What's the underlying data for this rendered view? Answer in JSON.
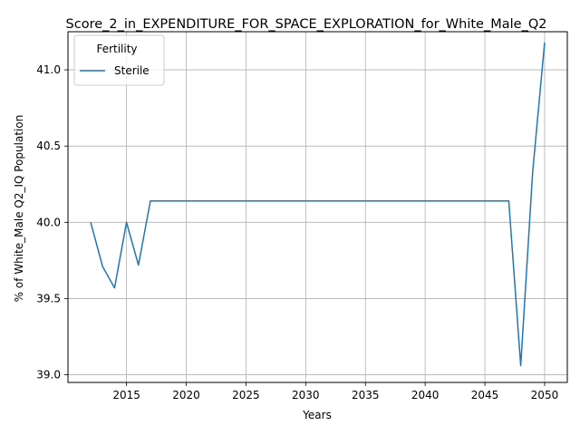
{
  "chart_data": {
    "type": "line",
    "title": "Score_2_in_EXPENDITURE_FOR_SPACE_EXPLORATION_for_White_Male_Q2",
    "xlabel": "Years",
    "ylabel": "% of White_Male Q2_IQ Population",
    "xlim": [
      2010.1,
      2051.9
    ],
    "ylim": [
      38.95,
      41.25
    ],
    "xticks": [
      2015,
      2020,
      2025,
      2030,
      2035,
      2040,
      2045,
      2050
    ],
    "yticks": [
      39.0,
      39.5,
      40.0,
      40.5,
      41.0
    ],
    "ytick_labels": [
      "39.0",
      "39.5",
      "40.0",
      "40.5",
      "41.0"
    ],
    "grid": true,
    "legend": {
      "title": "Fertility",
      "placement": "top-left"
    },
    "series": [
      {
        "name": "Sterile",
        "color": "#1f77b4",
        "x": [
          2012,
          2013,
          2014,
          2015,
          2016,
          2017,
          2018,
          2019,
          2020,
          2021,
          2022,
          2023,
          2024,
          2025,
          2026,
          2027,
          2028,
          2029,
          2030,
          2031,
          2032,
          2033,
          2034,
          2035,
          2036,
          2037,
          2038,
          2039,
          2040,
          2041,
          2042,
          2043,
          2044,
          2045,
          2046,
          2047,
          2048,
          2049,
          2050
        ],
        "y": [
          40.0,
          39.71,
          39.57,
          40.0,
          39.72,
          40.14,
          40.14,
          40.14,
          40.14,
          40.14,
          40.14,
          40.14,
          40.14,
          40.14,
          40.14,
          40.14,
          40.14,
          40.14,
          40.14,
          40.14,
          40.14,
          40.14,
          40.14,
          40.14,
          40.14,
          40.14,
          40.14,
          40.14,
          40.14,
          40.14,
          40.14,
          40.14,
          40.14,
          40.14,
          40.14,
          40.14,
          39.06,
          40.33,
          41.18
        ]
      }
    ]
  }
}
